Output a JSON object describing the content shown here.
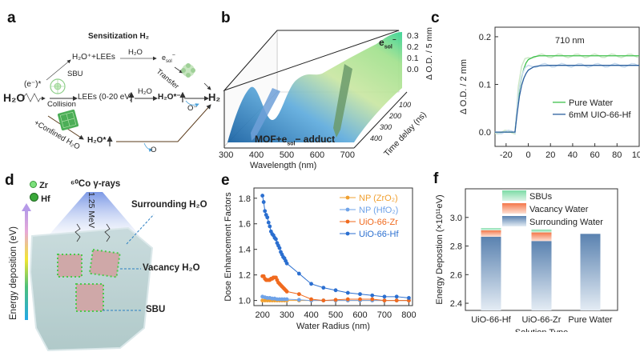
{
  "panels": {
    "a": {
      "label": "a",
      "title": "Sensitization H₂",
      "h2o": "H₂O",
      "excitation": "(e⁻)*",
      "top_product": "H₂O⁺+LEEs",
      "top_arrow": "H₂O",
      "esol": "e",
      "esol_sub": "sol",
      "esol_sup": "−",
      "transfer": "Transfer",
      "sbu": "SBU",
      "collision": "Collision",
      "lees": "LEEs (0-20 eV)",
      "mid_arrow": "H₂O",
      "h2o_star_minus": "H₂O*⁻",
      "h2": "H₂",
      "o_minus": "O⁻",
      "confined": "+Confined H₂O",
      "h2o_star": "H₂O*",
      "o": "O"
    },
    "b": {
      "label": "b",
      "xlabel": "Wavelength (nm)",
      "xticks": [
        "300",
        "400",
        "500",
        "600",
        "700"
      ],
      "ylabel": "Time delay (ns)",
      "yticks": [
        "100",
        "200",
        "300",
        "400"
      ],
      "zlabel": "Δ O.D. / 5 mm",
      "zticks": [
        "0.0",
        "0.1",
        "0.2",
        "0.3"
      ],
      "annotation_top": "e",
      "annotation_top_sub": "sol",
      "annotation_top_sup": "−",
      "annotation_bottom": "MOF+e",
      "annotation_bottom_sub": "sol",
      "annotation_bottom_tail": "− adduct"
    },
    "d": {
      "label": "d",
      "legend": [
        "Zr",
        "Hf"
      ],
      "source": "⁶⁰Co γ-rays",
      "energy": "1.25 MeV",
      "axis": "Energy deposition (eV)",
      "callouts": [
        "Surrounding H₂O",
        "Vacancy H₂O",
        "SBU"
      ]
    }
  },
  "colors": {
    "np_zro2": "#f0a030",
    "np_hfo2": "#6fa3e8",
    "uio_zr": "#f06a1e",
    "uio_hf": "#2b6fd0",
    "pure_water": "#3cc04a",
    "uio_hf_c": "#2a5f9e",
    "sbu": "#7ddba5",
    "vacancy": "#f4774a",
    "surrounding": "#5a82b0"
  },
  "chart_data": [
    {
      "panel": "c",
      "label": "c",
      "type": "line",
      "title": "710 nm",
      "xlabel": "Time delay (ps)",
      "ylabel": "Δ O.D. / 2 mm",
      "xlim": [
        -30,
        100
      ],
      "ylim": [
        -0.03,
        0.22
      ],
      "xticks": [
        -20,
        0,
        20,
        40,
        60,
        80,
        100
      ],
      "yticks": [
        0.0,
        0.1,
        0.2
      ],
      "ytick_labels": [
        "0.0",
        "0.1",
        "0.2"
      ],
      "legend_position": "bottom-right",
      "series": [
        {
          "name": "Pure Water",
          "onset": -12,
          "plateau": 0.16,
          "x": [
            -30,
            -12,
            -10,
            -8,
            -6,
            -4,
            -2,
            0,
            5,
            10,
            20,
            100
          ],
          "y": [
            0,
            0,
            0.05,
            0.09,
            0.115,
            0.133,
            0.145,
            0.152,
            0.158,
            0.16,
            0.16,
            0.16
          ]
        },
        {
          "name": "6mM UIO-66-Hf",
          "onset": -12,
          "plateau": 0.14,
          "x": [
            -30,
            -12,
            -10,
            -8,
            -6,
            -4,
            -2,
            0,
            5,
            10,
            20,
            100
          ],
          "y": [
            0,
            0,
            0.04,
            0.075,
            0.098,
            0.113,
            0.123,
            0.13,
            0.137,
            0.139,
            0.14,
            0.14
          ]
        }
      ]
    },
    {
      "panel": "e",
      "label": "e",
      "type": "line",
      "xlabel": "Water Radius (nm)",
      "ylabel": "Dose Enhancement Factors",
      "xlim": [
        165,
        815
      ],
      "ylim": [
        0.96,
        1.88
      ],
      "xticks": [
        200,
        300,
        400,
        500,
        600,
        700,
        800
      ],
      "yticks": [
        1.0,
        1.2,
        1.4,
        1.6,
        1.8
      ],
      "ytick_labels": [
        "1.0",
        "1.2",
        "1.4",
        "1.6",
        "1.8"
      ],
      "legend_position": "top-right",
      "series": [
        {
          "name": "NP (ZrO₂)",
          "x": [
            200,
            210,
            220,
            230,
            240,
            250,
            260,
            270,
            280,
            290,
            300,
            350,
            400,
            450,
            500,
            550,
            600,
            650,
            700,
            750,
            800
          ],
          "y": [
            1.0,
            1.0,
            1.0,
            1.0,
            1.0,
            1.0,
            1.0,
            1.0,
            1.0,
            1.0,
            1.0,
            1.0,
            1.0,
            1.0,
            1.0,
            1.0,
            1.0,
            1.0,
            1.0,
            1.0,
            1.0
          ]
        },
        {
          "name": "NP (HfO₂)",
          "x": [
            200,
            210,
            220,
            230,
            240,
            250,
            260,
            270,
            280,
            290,
            300,
            350,
            400,
            450,
            500,
            550,
            600,
            650,
            700,
            750,
            800
          ],
          "y": [
            1.03,
            1.025,
            1.02,
            1.02,
            1.015,
            1.015,
            1.01,
            1.01,
            1.01,
            1.01,
            1.01,
            1.005,
            1.0,
            1.0,
            1.0,
            1.0,
            1.0,
            1.0,
            1.0,
            1.0,
            1.0
          ]
        },
        {
          "name": "UiO-66-Zr",
          "x": [
            200,
            205,
            210,
            215,
            220,
            225,
            230,
            235,
            240,
            245,
            250,
            255,
            260,
            265,
            270,
            275,
            280,
            285,
            290,
            295,
            300,
            350,
            400,
            450,
            500,
            550,
            600,
            650,
            700,
            750,
            800
          ],
          "y": [
            1.19,
            1.19,
            1.17,
            1.16,
            1.16,
            1.16,
            1.16,
            1.17,
            1.17,
            1.18,
            1.18,
            1.18,
            1.16,
            1.14,
            1.13,
            1.12,
            1.11,
            1.1,
            1.09,
            1.08,
            1.07,
            1.05,
            1.01,
            1.0,
            1.005,
            1.01,
            1.01,
            1.01,
            1.0,
            1.0,
            1.0
          ]
        },
        {
          "name": "UiO-66-Hf",
          "x": [
            200,
            205,
            210,
            215,
            220,
            225,
            230,
            235,
            240,
            245,
            250,
            255,
            260,
            265,
            270,
            275,
            280,
            285,
            290,
            295,
            300,
            350,
            400,
            450,
            500,
            550,
            600,
            650,
            700,
            750,
            800
          ],
          "y": [
            1.82,
            1.77,
            1.7,
            1.67,
            1.65,
            1.61,
            1.58,
            1.54,
            1.52,
            1.51,
            1.49,
            1.48,
            1.45,
            1.43,
            1.41,
            1.38,
            1.36,
            1.34,
            1.33,
            1.31,
            1.29,
            1.21,
            1.13,
            1.1,
            1.08,
            1.06,
            1.05,
            1.04,
            1.03,
            1.03,
            1.02
          ]
        }
      ]
    },
    {
      "panel": "f",
      "label": "f",
      "type": "bar",
      "stacked": true,
      "xlabel": "Solution Type",
      "ylabel": "Energy Depostion (×10¹¹eV)",
      "categories": [
        "UiO-66-Hf",
        "UiO-66-Zr",
        "Pure Water"
      ],
      "ylim": [
        2.35,
        3.2
      ],
      "yticks": [
        2.4,
        2.6,
        2.8,
        3.0
      ],
      "ytick_labels": [
        "2.4",
        "2.6",
        "2.8",
        "3.0"
      ],
      "legend_position": "top",
      "series": [
        {
          "name": "Surrounding Water",
          "values": [
            2.865,
            2.835,
            2.885
          ]
        },
        {
          "name": "Vacancy Water",
          "values": [
            0.045,
            0.06,
            0
          ]
        },
        {
          "name": "SBUs",
          "values": [
            0.015,
            0.02,
            0
          ]
        }
      ]
    }
  ]
}
